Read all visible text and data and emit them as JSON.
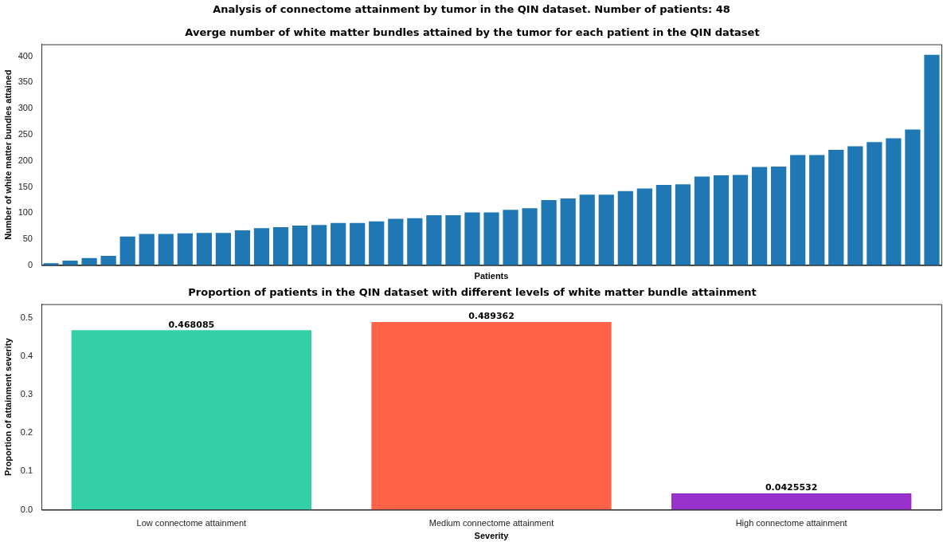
{
  "chart_data": [
    {
      "type": "bar",
      "annotations": [
        "Analysis of connectome attainment by tumor in the QIN dataset. Number of patients: 48"
      ],
      "title": "Averge number of white matter bundles attained by the tumor for each patient in the QIN dataset",
      "xlabel": "Patients",
      "ylabel": "Number of white matter bundles attained",
      "categories": [
        null,
        null,
        null,
        null,
        null,
        null,
        null,
        null,
        null,
        null,
        null,
        null,
        null,
        null,
        null,
        null,
        null,
        null,
        null,
        null,
        null,
        null,
        null,
        null,
        null,
        null,
        null,
        null,
        null,
        null,
        null,
        null,
        null,
        null,
        null,
        null,
        null,
        null,
        null,
        null,
        null,
        null,
        null,
        null,
        null,
        null,
        null
      ],
      "values": [
        4,
        9,
        14,
        18,
        55,
        60,
        60,
        61,
        62,
        62,
        67,
        71,
        73,
        76,
        77,
        81,
        81,
        84,
        89,
        90,
        96,
        96,
        101,
        101,
        106,
        109,
        125,
        128,
        135,
        135,
        142,
        147,
        154,
        155,
        170,
        172,
        173,
        188,
        189,
        211,
        211,
        221,
        228,
        236,
        243,
        260,
        403
      ],
      "color": "#1f77b4",
      "ylim": [
        0,
        423
      ],
      "yticks": [
        0,
        50,
        100,
        150,
        200,
        250,
        300,
        350,
        400
      ],
      "tick_labels": "y",
      "grid": false
    },
    {
      "type": "bar",
      "title": "Proportion of patients in the QIN dataset with different levels of white matter bundle attainment",
      "xlabel": "Severity",
      "ylabel": "Proportion of attainment severity",
      "categories": [
        "Low connectome attainment",
        "Medium connectome attainment",
        "High connectome attainment"
      ],
      "values": [
        0.468085,
        0.489362,
        0.0425532
      ],
      "colors": [
        "#32cfa9",
        "#ff6347",
        "#9932cc"
      ],
      "ylim": [
        0,
        0.536
      ],
      "yticks": [
        {
          "value": 0,
          "label": "0.0"
        },
        0.1,
        0.2,
        0.3,
        0.4,
        0.5
      ],
      "data_labels": true,
      "grid": false
    }
  ]
}
